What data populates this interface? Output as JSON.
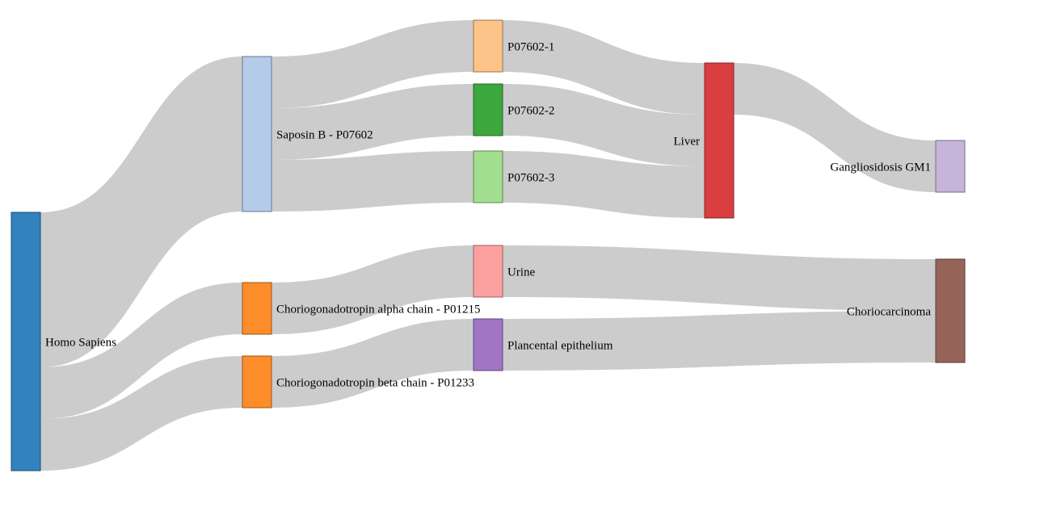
{
  "chart_data": {
    "type": "sankey",
    "nodes": [
      {
        "id": "homo_sapiens",
        "label": "Homo Sapiens",
        "column": 0,
        "color": "#3182bd"
      },
      {
        "id": "saposin_b",
        "label": "Saposin B - P07602",
        "column": 1,
        "color": "#b4cbea"
      },
      {
        "id": "cg_alpha",
        "label": "Choriogonadotropin alpha chain - P01215",
        "column": 1,
        "color": "#fd8d2a"
      },
      {
        "id": "cg_beta",
        "label": "Choriogonadotropin beta chain - P01233",
        "column": 1,
        "color": "#fd8d2a"
      },
      {
        "id": "p07602_1",
        "label": "P07602-1",
        "column": 2,
        "color": "#fdc388"
      },
      {
        "id": "p07602_2",
        "label": "P07602-2",
        "column": 2,
        "color": "#3ca73c"
      },
      {
        "id": "p07602_3",
        "label": "P07602-3",
        "column": 2,
        "color": "#a1de8f"
      },
      {
        "id": "urine",
        "label": "Urine",
        "column": 2,
        "color": "#fda0a0"
      },
      {
        "id": "placental",
        "label": "Plancental epithelium",
        "column": 2,
        "color": "#9f75c4"
      },
      {
        "id": "liver",
        "label": "Liver",
        "column": 3,
        "color": "#d93e40"
      },
      {
        "id": "gm1",
        "label": "Gangliosidosis GM1",
        "column": 4,
        "color": "#c6b5d9"
      },
      {
        "id": "choriocarcinoma",
        "label": "Choriocarcinoma",
        "column": 4,
        "color": "#966358"
      }
    ],
    "links": [
      {
        "source": "homo_sapiens",
        "target": "saposin_b",
        "value": 3
      },
      {
        "source": "homo_sapiens",
        "target": "cg_alpha",
        "value": 1
      },
      {
        "source": "homo_sapiens",
        "target": "cg_beta",
        "value": 1
      },
      {
        "source": "saposin_b",
        "target": "p07602_1",
        "value": 1
      },
      {
        "source": "saposin_b",
        "target": "p07602_2",
        "value": 1
      },
      {
        "source": "saposin_b",
        "target": "p07602_3",
        "value": 1
      },
      {
        "source": "cg_alpha",
        "target": "urine",
        "value": 1
      },
      {
        "source": "cg_beta",
        "target": "placental",
        "value": 1
      },
      {
        "source": "p07602_1",
        "target": "liver",
        "value": 1
      },
      {
        "source": "p07602_2",
        "target": "liver",
        "value": 1
      },
      {
        "source": "p07602_3",
        "target": "liver",
        "value": 1
      },
      {
        "source": "liver",
        "target": "gm1",
        "value": 1
      },
      {
        "source": "urine",
        "target": "choriocarcinoma",
        "value": 1
      },
      {
        "source": "placental",
        "target": "choriocarcinoma",
        "value": 1
      }
    ],
    "colors": {
      "link": "#cccccc"
    }
  }
}
